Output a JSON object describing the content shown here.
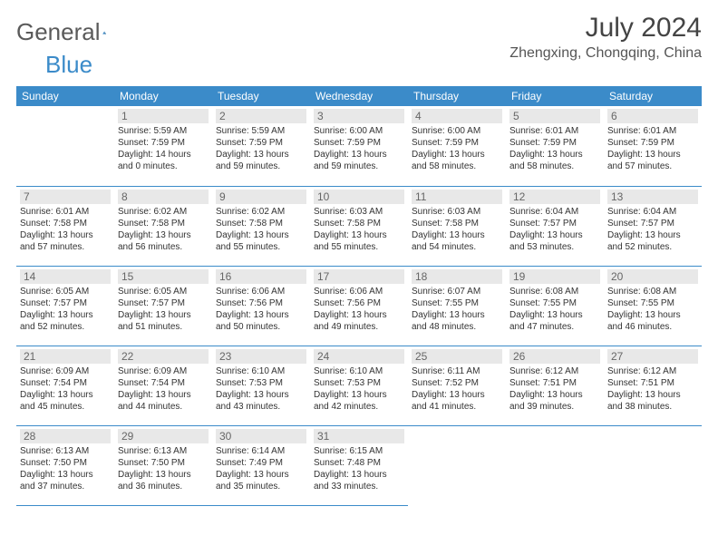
{
  "brand": {
    "name_a": "General",
    "name_b": "Blue",
    "logo_color": "#3b8bc9"
  },
  "title": "July 2024",
  "location": "Zhengxing, Chongqing, China",
  "colors": {
    "header_bg": "#3b8bc9",
    "header_text": "#ffffff",
    "daynum_bg": "#e8e8e8",
    "daynum_text": "#666666",
    "border": "#3b8bc9",
    "body_text": "#333333"
  },
  "weekdays": [
    "Sunday",
    "Monday",
    "Tuesday",
    "Wednesday",
    "Thursday",
    "Friday",
    "Saturday"
  ],
  "weeks": [
    [
      null,
      {
        "n": "1",
        "sr": "Sunrise: 5:59 AM",
        "ss": "Sunset: 7:59 PM",
        "d1": "Daylight: 14 hours",
        "d2": "and 0 minutes."
      },
      {
        "n": "2",
        "sr": "Sunrise: 5:59 AM",
        "ss": "Sunset: 7:59 PM",
        "d1": "Daylight: 13 hours",
        "d2": "and 59 minutes."
      },
      {
        "n": "3",
        "sr": "Sunrise: 6:00 AM",
        "ss": "Sunset: 7:59 PM",
        "d1": "Daylight: 13 hours",
        "d2": "and 59 minutes."
      },
      {
        "n": "4",
        "sr": "Sunrise: 6:00 AM",
        "ss": "Sunset: 7:59 PM",
        "d1": "Daylight: 13 hours",
        "d2": "and 58 minutes."
      },
      {
        "n": "5",
        "sr": "Sunrise: 6:01 AM",
        "ss": "Sunset: 7:59 PM",
        "d1": "Daylight: 13 hours",
        "d2": "and 58 minutes."
      },
      {
        "n": "6",
        "sr": "Sunrise: 6:01 AM",
        "ss": "Sunset: 7:59 PM",
        "d1": "Daylight: 13 hours",
        "d2": "and 57 minutes."
      }
    ],
    [
      {
        "n": "7",
        "sr": "Sunrise: 6:01 AM",
        "ss": "Sunset: 7:58 PM",
        "d1": "Daylight: 13 hours",
        "d2": "and 57 minutes."
      },
      {
        "n": "8",
        "sr": "Sunrise: 6:02 AM",
        "ss": "Sunset: 7:58 PM",
        "d1": "Daylight: 13 hours",
        "d2": "and 56 minutes."
      },
      {
        "n": "9",
        "sr": "Sunrise: 6:02 AM",
        "ss": "Sunset: 7:58 PM",
        "d1": "Daylight: 13 hours",
        "d2": "and 55 minutes."
      },
      {
        "n": "10",
        "sr": "Sunrise: 6:03 AM",
        "ss": "Sunset: 7:58 PM",
        "d1": "Daylight: 13 hours",
        "d2": "and 55 minutes."
      },
      {
        "n": "11",
        "sr": "Sunrise: 6:03 AM",
        "ss": "Sunset: 7:58 PM",
        "d1": "Daylight: 13 hours",
        "d2": "and 54 minutes."
      },
      {
        "n": "12",
        "sr": "Sunrise: 6:04 AM",
        "ss": "Sunset: 7:57 PM",
        "d1": "Daylight: 13 hours",
        "d2": "and 53 minutes."
      },
      {
        "n": "13",
        "sr": "Sunrise: 6:04 AM",
        "ss": "Sunset: 7:57 PM",
        "d1": "Daylight: 13 hours",
        "d2": "and 52 minutes."
      }
    ],
    [
      {
        "n": "14",
        "sr": "Sunrise: 6:05 AM",
        "ss": "Sunset: 7:57 PM",
        "d1": "Daylight: 13 hours",
        "d2": "and 52 minutes."
      },
      {
        "n": "15",
        "sr": "Sunrise: 6:05 AM",
        "ss": "Sunset: 7:57 PM",
        "d1": "Daylight: 13 hours",
        "d2": "and 51 minutes."
      },
      {
        "n": "16",
        "sr": "Sunrise: 6:06 AM",
        "ss": "Sunset: 7:56 PM",
        "d1": "Daylight: 13 hours",
        "d2": "and 50 minutes."
      },
      {
        "n": "17",
        "sr": "Sunrise: 6:06 AM",
        "ss": "Sunset: 7:56 PM",
        "d1": "Daylight: 13 hours",
        "d2": "and 49 minutes."
      },
      {
        "n": "18",
        "sr": "Sunrise: 6:07 AM",
        "ss": "Sunset: 7:55 PM",
        "d1": "Daylight: 13 hours",
        "d2": "and 48 minutes."
      },
      {
        "n": "19",
        "sr": "Sunrise: 6:08 AM",
        "ss": "Sunset: 7:55 PM",
        "d1": "Daylight: 13 hours",
        "d2": "and 47 minutes."
      },
      {
        "n": "20",
        "sr": "Sunrise: 6:08 AM",
        "ss": "Sunset: 7:55 PM",
        "d1": "Daylight: 13 hours",
        "d2": "and 46 minutes."
      }
    ],
    [
      {
        "n": "21",
        "sr": "Sunrise: 6:09 AM",
        "ss": "Sunset: 7:54 PM",
        "d1": "Daylight: 13 hours",
        "d2": "and 45 minutes."
      },
      {
        "n": "22",
        "sr": "Sunrise: 6:09 AM",
        "ss": "Sunset: 7:54 PM",
        "d1": "Daylight: 13 hours",
        "d2": "and 44 minutes."
      },
      {
        "n": "23",
        "sr": "Sunrise: 6:10 AM",
        "ss": "Sunset: 7:53 PM",
        "d1": "Daylight: 13 hours",
        "d2": "and 43 minutes."
      },
      {
        "n": "24",
        "sr": "Sunrise: 6:10 AM",
        "ss": "Sunset: 7:53 PM",
        "d1": "Daylight: 13 hours",
        "d2": "and 42 minutes."
      },
      {
        "n": "25",
        "sr": "Sunrise: 6:11 AM",
        "ss": "Sunset: 7:52 PM",
        "d1": "Daylight: 13 hours",
        "d2": "and 41 minutes."
      },
      {
        "n": "26",
        "sr": "Sunrise: 6:12 AM",
        "ss": "Sunset: 7:51 PM",
        "d1": "Daylight: 13 hours",
        "d2": "and 39 minutes."
      },
      {
        "n": "27",
        "sr": "Sunrise: 6:12 AM",
        "ss": "Sunset: 7:51 PM",
        "d1": "Daylight: 13 hours",
        "d2": "and 38 minutes."
      }
    ],
    [
      {
        "n": "28",
        "sr": "Sunrise: 6:13 AM",
        "ss": "Sunset: 7:50 PM",
        "d1": "Daylight: 13 hours",
        "d2": "and 37 minutes."
      },
      {
        "n": "29",
        "sr": "Sunrise: 6:13 AM",
        "ss": "Sunset: 7:50 PM",
        "d1": "Daylight: 13 hours",
        "d2": "and 36 minutes."
      },
      {
        "n": "30",
        "sr": "Sunrise: 6:14 AM",
        "ss": "Sunset: 7:49 PM",
        "d1": "Daylight: 13 hours",
        "d2": "and 35 minutes."
      },
      {
        "n": "31",
        "sr": "Sunrise: 6:15 AM",
        "ss": "Sunset: 7:48 PM",
        "d1": "Daylight: 13 hours",
        "d2": "and 33 minutes."
      },
      null,
      null,
      null
    ]
  ]
}
